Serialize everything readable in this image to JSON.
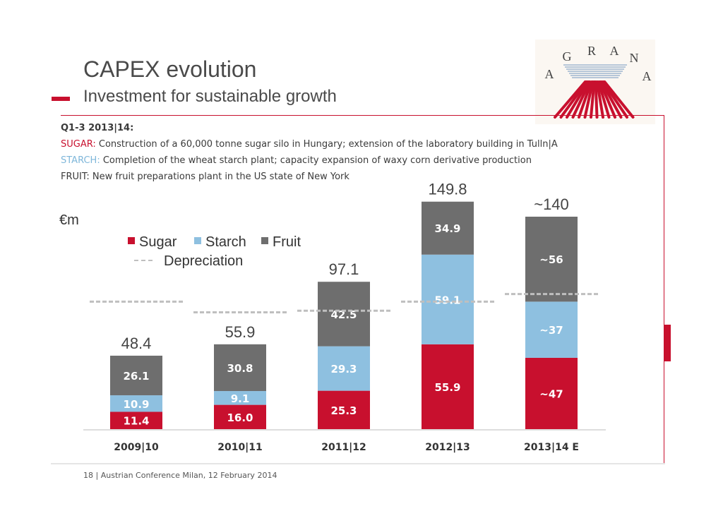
{
  "header": {
    "title": "CAPEX evolution",
    "subtitle": "Investment for sustainable growth"
  },
  "logo": {
    "text": "AGRANA",
    "letters": [
      "A",
      "G",
      "R",
      "A",
      "N",
      "A"
    ]
  },
  "info": {
    "heading": "Q1-3 2013|14:",
    "sugar_label": "SUGAR:",
    "sugar_text": "Construction of a 60,000 tonne sugar silo in Hungary; extension of the laboratory building in Tulln|A",
    "starch_label": "STARCH:",
    "starch_text": "Completion of the wheat starch plant; capacity expansion of waxy corn derivative production",
    "fruit_text": "FRUIT: New fruit preparations plant in the US state of New York"
  },
  "colors": {
    "sugar": "#c8102e",
    "starch": "#8ec0e0",
    "fruit": "#6e6e6e",
    "depreciation": "#bfbfbf"
  },
  "chart_data": {
    "type": "bar",
    "stacked": true,
    "unit_label": "€m",
    "categories": [
      "2009|10",
      "2010|11",
      "2011|12",
      "2012|13",
      "2013|14 E"
    ],
    "series": [
      {
        "name": "Sugar",
        "key": "sugar",
        "values": [
          11.4,
          16.0,
          25.3,
          55.9,
          47
        ],
        "labels": [
          "11.4",
          "16.0",
          "25.3",
          "55.9",
          "~47"
        ]
      },
      {
        "name": "Starch",
        "key": "starch",
        "values": [
          10.9,
          9.1,
          29.3,
          59.1,
          37
        ],
        "labels": [
          "10.9",
          "9.1",
          "29.3",
          "59.1",
          "~37"
        ]
      },
      {
        "name": "Fruit",
        "key": "fruit",
        "values": [
          26.1,
          30.8,
          42.5,
          34.9,
          56
        ],
        "labels": [
          "26.1",
          "30.8",
          "42.5",
          "34.9",
          "~56"
        ]
      }
    ],
    "totals": [
      "48.4",
      "55.9",
      "97.1",
      "149.8",
      "~140"
    ],
    "depreciation": {
      "name": "Depreciation",
      "values": [
        84,
        77,
        78,
        84,
        89
      ]
    },
    "legend": [
      "Sugar",
      "Starch",
      "Fruit",
      "Depreciation"
    ],
    "ylim": [
      0,
      150
    ]
  },
  "footer": {
    "page": "18",
    "separator": "|",
    "text": "Austrian Conference Milan, 12 February 2014"
  }
}
